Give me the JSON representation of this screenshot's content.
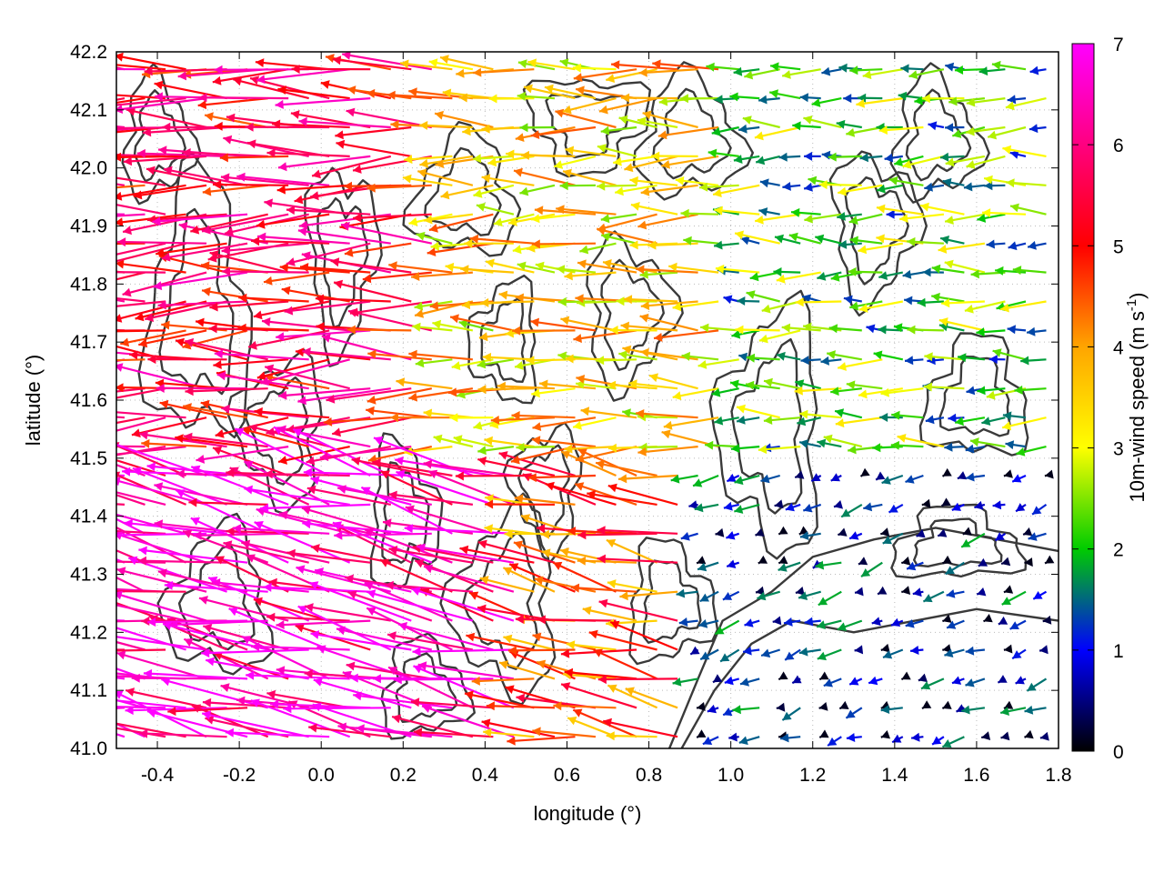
{
  "chart_data": {
    "type": "vector-field",
    "xlabel": "longitude (°)",
    "ylabel": "latitude (°)",
    "xlim": [
      -0.5,
      1.8
    ],
    "ylim": [
      41.0,
      42.2
    ],
    "x_ticks": [
      "-0.4",
      "-0.2",
      "0.0",
      "0.2",
      "0.4",
      "0.6",
      "0.8",
      "1.0",
      "1.2",
      "1.4",
      "1.6",
      "1.8"
    ],
    "x_tick_values": [
      -0.4,
      -0.2,
      0.0,
      0.2,
      0.4,
      0.6,
      0.8,
      1.0,
      1.2,
      1.4,
      1.6,
      1.8
    ],
    "y_ticks": [
      "41.0",
      "41.1",
      "41.2",
      "41.3",
      "41.4",
      "41.5",
      "41.6",
      "41.7",
      "41.8",
      "41.9",
      "42.0",
      "42.1",
      "42.2"
    ],
    "y_tick_values": [
      41.0,
      41.1,
      41.2,
      41.3,
      41.4,
      41.5,
      41.6,
      41.7,
      41.8,
      41.9,
      42.0,
      42.1,
      42.2
    ],
    "grid": true,
    "colorbar": {
      "title": "10m-wind speed (m s",
      "title_sup": "-1",
      "title_end": ")",
      "range": [
        0,
        7
      ],
      "ticks": [
        "0",
        "1",
        "2",
        "3",
        "4",
        "5",
        "6",
        "7"
      ],
      "tick_values": [
        0,
        1,
        2,
        3,
        4,
        5,
        6,
        7
      ],
      "colors": [
        "#000000",
        "#0000ff",
        "#00cc00",
        "#ffff00",
        "#ffa500",
        "#ff0000",
        "#ff00ff"
      ]
    },
    "wind_field": {
      "description_units": "m s-1",
      "lon_start": -0.48,
      "lon_step": 0.05,
      "lat_start": 41.0,
      "lat_step": 0.05,
      "regions": [
        {
          "lon": [
            -0.5,
            0.5
          ],
          "lat": [
            41.0,
            41.5
          ],
          "speed": 6.5,
          "dir_deg": 168
        },
        {
          "lon": [
            -0.5,
            0.3
          ],
          "lat": [
            41.5,
            42.2
          ],
          "speed": 5.5,
          "dir_deg": 180
        },
        {
          "lon": [
            0.3,
            1.0
          ],
          "lat": [
            41.5,
            42.2
          ],
          "speed": 3.5,
          "dir_deg": 180
        },
        {
          "lon": [
            0.5,
            0.9
          ],
          "lat": [
            41.0,
            41.5
          ],
          "speed": 4.5,
          "dir_deg": 170
        },
        {
          "lon": [
            1.0,
            1.8
          ],
          "lat": [
            41.5,
            42.2
          ],
          "speed": 2.2,
          "dir_deg": 180
        },
        {
          "lon": [
            0.9,
            1.8
          ],
          "lat": [
            41.0,
            41.5
          ],
          "speed": 0.8,
          "dir_deg": 200
        }
      ]
    },
    "contours": "terrain elevation isolines (unlabeled)"
  }
}
